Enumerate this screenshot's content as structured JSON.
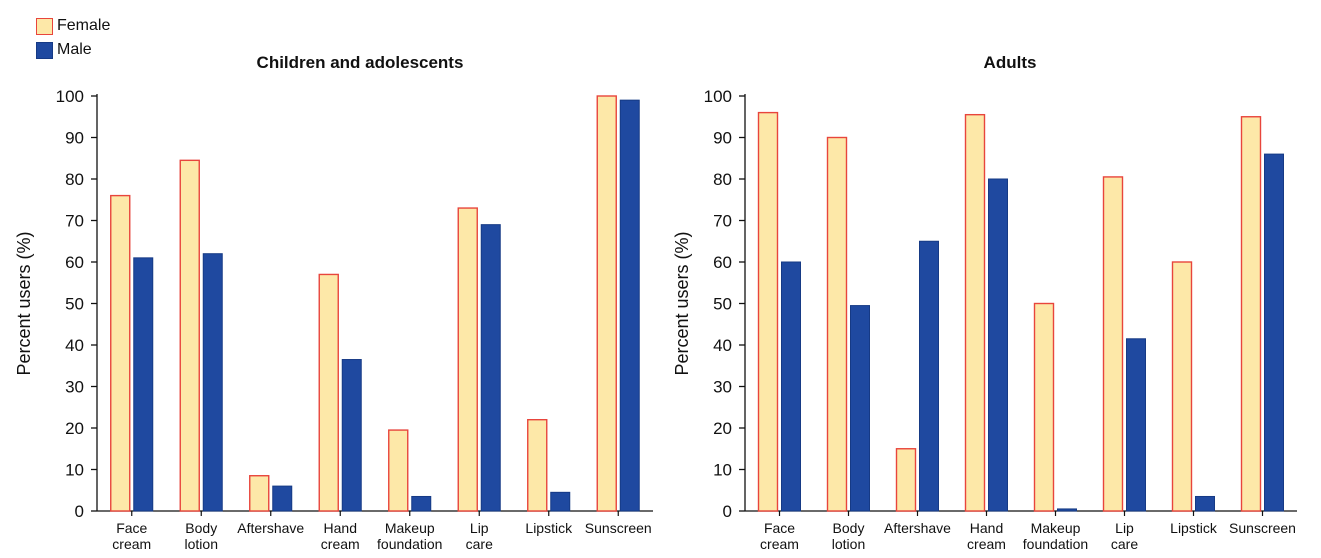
{
  "legend": {
    "female_label": "Female",
    "male_label": "Male"
  },
  "colors": {
    "female_fill": "#fde8a8",
    "female_stroke": "#e8453c",
    "male_fill": "#1f49a0",
    "male_stroke": "#163a85",
    "axis": "#111111"
  },
  "chart_data": [
    {
      "type": "bar",
      "title": "Children and adolescents",
      "ylabel": "Percent users (%)",
      "xlabel": "",
      "ylim": [
        0,
        100
      ],
      "yticks": [
        0,
        10,
        20,
        30,
        40,
        50,
        60,
        70,
        80,
        90,
        100
      ],
      "grid": false,
      "categories": [
        [
          "Face",
          "cream"
        ],
        [
          "Body",
          "lotion"
        ],
        [
          "Aftershave"
        ],
        [
          "Hand",
          "cream"
        ],
        [
          "Makeup",
          "foundation"
        ],
        [
          "Lip",
          "care"
        ],
        [
          "Lipstick"
        ],
        [
          "Sunscreen"
        ]
      ],
      "series": [
        {
          "name": "Female",
          "values": [
            76,
            84.5,
            8.5,
            57,
            19.5,
            73,
            22,
            100
          ]
        },
        {
          "name": "Male",
          "values": [
            61,
            62,
            6,
            36.5,
            3.5,
            69,
            4.5,
            99
          ]
        }
      ]
    },
    {
      "type": "bar",
      "title": "Adults",
      "ylabel": "Percent users (%)",
      "xlabel": "",
      "ylim": [
        0,
        100
      ],
      "yticks": [
        0,
        10,
        20,
        30,
        40,
        50,
        60,
        70,
        80,
        90,
        100
      ],
      "grid": false,
      "categories": [
        [
          "Face",
          "cream"
        ],
        [
          "Body",
          "lotion"
        ],
        [
          "Aftershave"
        ],
        [
          "Hand",
          "cream"
        ],
        [
          "Makeup",
          "foundation"
        ],
        [
          "Lip",
          "care"
        ],
        [
          "Lipstick"
        ],
        [
          "Sunscreen"
        ]
      ],
      "series": [
        {
          "name": "Female",
          "values": [
            96,
            90,
            15,
            95.5,
            50,
            80.5,
            60,
            95
          ]
        },
        {
          "name": "Male",
          "values": [
            60,
            49.5,
            65,
            80,
            0.5,
            41.5,
            3.5,
            86
          ]
        }
      ]
    }
  ]
}
